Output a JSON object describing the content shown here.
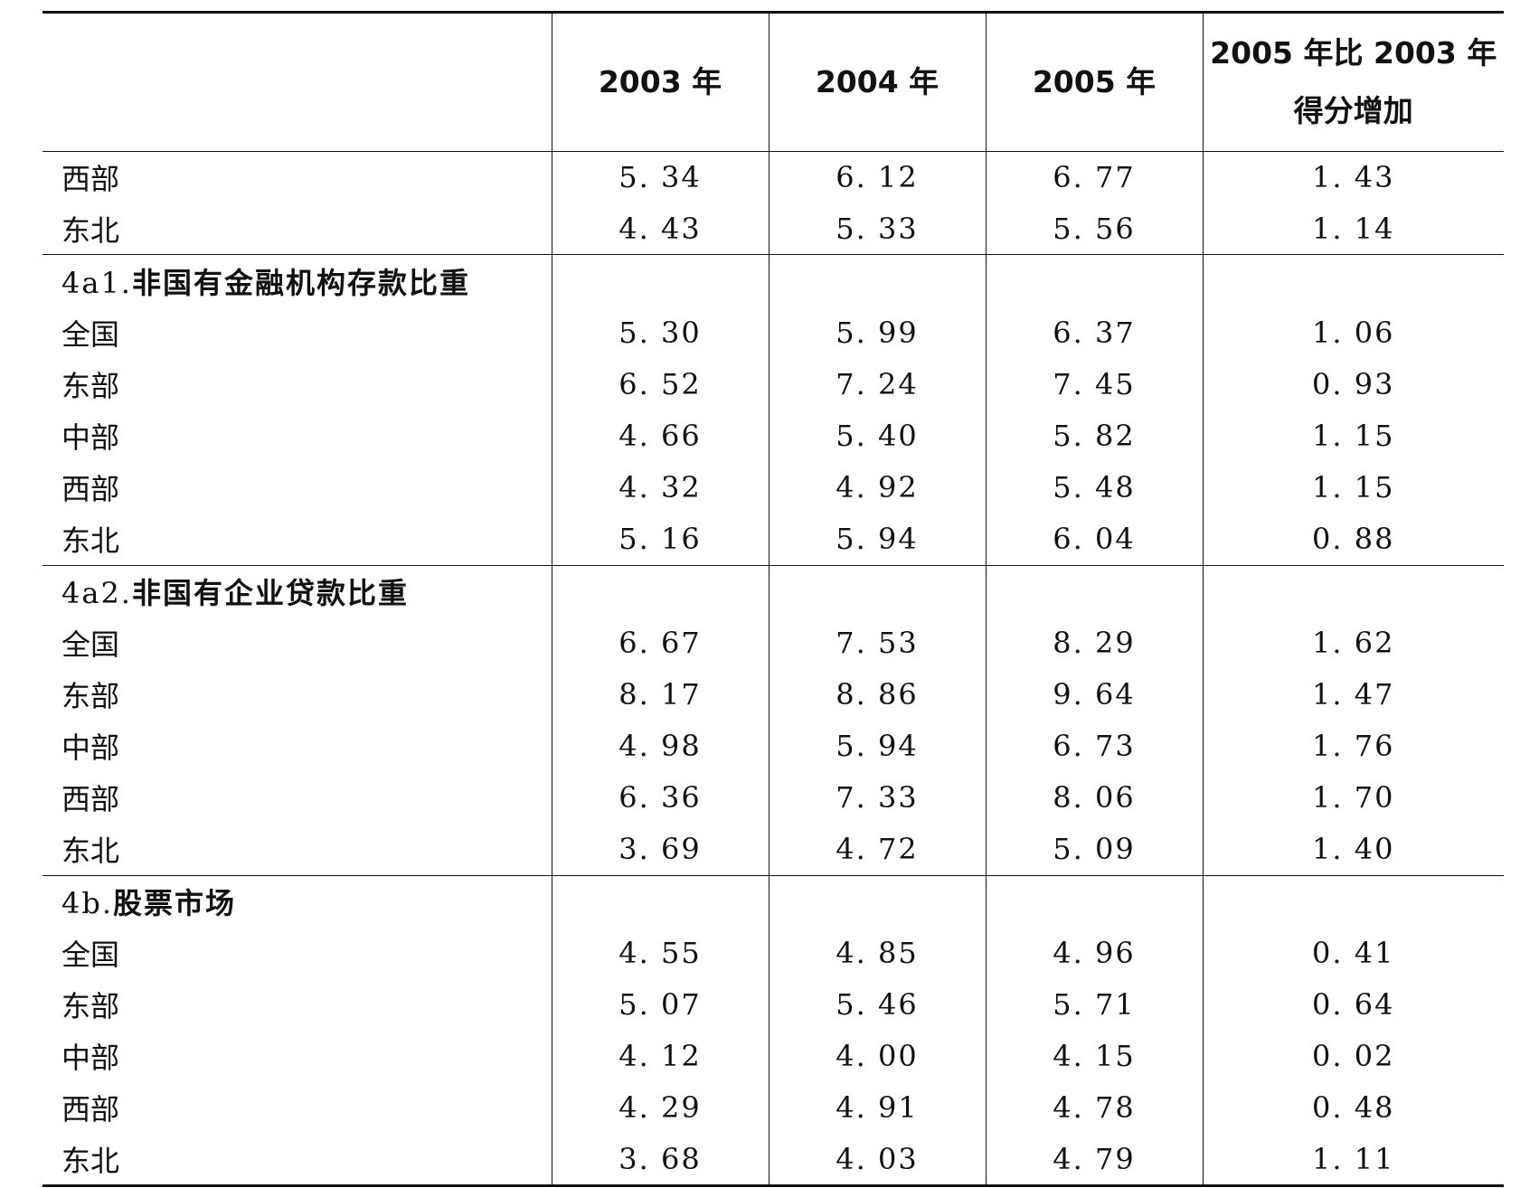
{
  "headers": [
    "",
    "2003 年",
    "2004 年",
    "2005 年",
    "2005 年比 2003 年\n得分增加"
  ],
  "groups": [
    {
      "title": "",
      "rows": [
        {
          "region": "西部",
          "values": [
            "5. 34",
            "6. 12",
            "6. 77",
            "1. 43"
          ]
        },
        {
          "region": "东北",
          "values": [
            "4. 43",
            "5. 33",
            "5. 56",
            "1. 14"
          ]
        }
      ]
    },
    {
      "code": "4a1.",
      "title": "非国有金融机构存款比重",
      "rows": [
        {
          "region": "全国",
          "values": [
            "5. 30",
            "5. 99",
            "6. 37",
            "1. 06"
          ]
        },
        {
          "region": "东部",
          "values": [
            "6. 52",
            "7. 24",
            "7. 45",
            "0. 93"
          ]
        },
        {
          "region": "中部",
          "values": [
            "4. 66",
            "5. 40",
            "5. 82",
            "1. 15"
          ]
        },
        {
          "region": "西部",
          "values": [
            "4. 32",
            "4. 92",
            "5. 48",
            "1. 15"
          ]
        },
        {
          "region": "东北",
          "values": [
            "5. 16",
            "5. 94",
            "6. 04",
            "0. 88"
          ]
        }
      ]
    },
    {
      "code": "4a2.",
      "title": "非国有企业贷款比重",
      "rows": [
        {
          "region": "全国",
          "values": [
            "6. 67",
            "7. 53",
            "8. 29",
            "1. 62"
          ]
        },
        {
          "region": "东部",
          "values": [
            "8. 17",
            "8. 86",
            "9. 64",
            "1. 47"
          ]
        },
        {
          "region": "中部",
          "values": [
            "4. 98",
            "5. 94",
            "6. 73",
            "1. 76"
          ]
        },
        {
          "region": "西部",
          "values": [
            "6. 36",
            "7. 33",
            "8. 06",
            "1. 70"
          ]
        },
        {
          "region": "东北",
          "values": [
            "3. 69",
            "4. 72",
            "5. 09",
            "1. 40"
          ]
        }
      ]
    },
    {
      "code": "4b.",
      "title": "股票市场",
      "rows": [
        {
          "region": "全国",
          "values": [
            "4. 55",
            "4. 85",
            "4. 96",
            "0. 41"
          ]
        },
        {
          "region": "东部",
          "values": [
            "5. 07",
            "5. 46",
            "5. 71",
            "0. 64"
          ]
        },
        {
          "region": "中部",
          "values": [
            "4. 12",
            "4. 00",
            "4. 15",
            "0. 02"
          ]
        },
        {
          "region": "西部",
          "values": [
            "4. 29",
            "4. 91",
            "4. 78",
            "0. 48"
          ]
        },
        {
          "region": "东北",
          "values": [
            "3. 68",
            "4. 03",
            "4. 79",
            "1. 11"
          ]
        }
      ]
    }
  ]
}
